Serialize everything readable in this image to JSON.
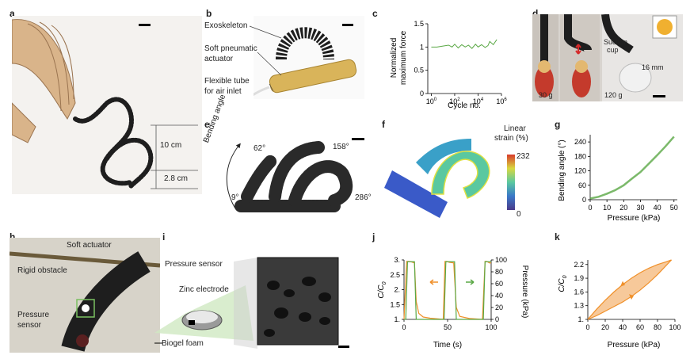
{
  "labels": {
    "a": "a",
    "b": "b",
    "c": "c",
    "d": "d",
    "e": "e",
    "f": "f",
    "g": "g",
    "h": "h",
    "i": "i",
    "j": "j",
    "k": "k"
  },
  "panel_a": {
    "dim_upper": "10 cm",
    "dim_lower": "2.8 cm"
  },
  "panel_b": {
    "exoskeleton": "Exoskeleton",
    "actuator_line1": "Soft pneumatic",
    "actuator_line2": "actuator",
    "tube_line1": "Flexible tube",
    "tube_line2": "for air inlet"
  },
  "panel_d": {
    "weight1": "30 g",
    "weight2": "120 g",
    "suction_line1": "Suction",
    "suction_line2": "cup",
    "dim": "16 mm"
  },
  "panel_e": {
    "axis": "Bending angle",
    "a1": "9°",
    "a2": "62°",
    "a3": "158°",
    "a4": "286°"
  },
  "panel_f": {
    "cbar_title_line1": "Linear",
    "cbar_title_line2": "strain (%)",
    "cbar_max": "232",
    "cbar_min": "0"
  },
  "panel_h": {
    "soft": "Soft actuator",
    "rigid": "Rigid obstacle",
    "sensor_line1": "Pressure",
    "sensor_line2": "sensor"
  },
  "panel_i": {
    "title": "Pressure sensor",
    "zinc": "Zinc electrode",
    "biogel": "Biogel foam"
  },
  "colors": {
    "green": "#5aa845",
    "orange": "#f0902a",
    "orange_fill": "#f7c99a",
    "black": "#1a1a1a"
  },
  "chart_data": [
    {
      "panel": "c",
      "type": "line",
      "xlabel": "Cycle no.",
      "ylabel_line1": "Normalized",
      "ylabel_line2": "maximum force",
      "x_log": true,
      "xlim": [
        0.5,
        1000000
      ],
      "ylim": [
        0,
        1.5
      ],
      "xticks": [
        {
          "base": "10",
          "exp": "0",
          "v": 1
        },
        {
          "base": "10",
          "exp": "2",
          "v": 100
        },
        {
          "base": "10",
          "exp": "4",
          "v": 10000
        },
        {
          "base": "10",
          "exp": "6",
          "v": 1000000
        }
      ],
      "yticks": [
        "0",
        "0.5",
        "1",
        "1.5"
      ],
      "series": [
        {
          "x": [
            1,
            3,
            10,
            30,
            60,
            100,
            200,
            400,
            800,
            1500,
            3000,
            6000,
            10000,
            20000,
            40000,
            70000,
            100000,
            200000,
            400000
          ],
          "y": [
            1.0,
            1.0,
            1.02,
            1.04,
            1.0,
            1.06,
            0.98,
            1.05,
            1.0,
            1.04,
            0.97,
            1.06,
            1.0,
            1.05,
            0.99,
            1.03,
            1.12,
            1.05,
            1.16
          ]
        }
      ]
    },
    {
      "panel": "g",
      "type": "line",
      "xlabel": "Pressure (kPa)",
      "ylabel": "Bending angle (°)",
      "xlim": [
        0,
        52
      ],
      "ylim": [
        0,
        270
      ],
      "xticks": [
        "0",
        "10",
        "20",
        "30",
        "40",
        "50"
      ],
      "yticks": [
        "0",
        "60",
        "120",
        "180",
        "240"
      ],
      "series": [
        {
          "x": [
            0,
            5,
            10,
            15,
            20,
            25,
            30,
            35,
            40,
            45,
            50
          ],
          "y": [
            5,
            12,
            25,
            40,
            60,
            88,
            115,
            150,
            185,
            222,
            262
          ]
        }
      ]
    },
    {
      "panel": "j",
      "type": "line",
      "xlabel": "Time (s)",
      "ylabel_left_base": "C/C",
      "ylabel_left_sub": "0",
      "ylabel_right": "Pressure (kPa)",
      "xlim": [
        0,
        100
      ],
      "ylim_left": [
        1,
        3
      ],
      "ylim_right": [
        0,
        100
      ],
      "xticks": [
        "0",
        "50",
        "100"
      ],
      "yticks_left": [
        "1.",
        "1.5",
        "2.",
        "2.5",
        "3."
      ],
      "yticks_right": [
        "0",
        "20",
        "40",
        "60",
        "80",
        "100"
      ],
      "series": [
        {
          "axis": "left",
          "color": "orange",
          "x": [
            0,
            3,
            5,
            8,
            12,
            14,
            17,
            22,
            30,
            45,
            47,
            49,
            52,
            57,
            60,
            64,
            75,
            90,
            93,
            95,
            98,
            100
          ],
          "y": [
            1.0,
            2.95,
            2.95,
            2.94,
            2.9,
            1.6,
            1.2,
            1.08,
            1.04,
            1.0,
            2.95,
            2.95,
            2.92,
            2.9,
            1.4,
            1.1,
            1.03,
            1.0,
            2.95,
            2.95,
            2.9,
            2.9
          ]
        },
        {
          "axis": "right",
          "color": "green",
          "x": [
            0,
            2,
            4,
            12,
            14,
            16,
            44,
            46,
            48,
            58,
            60,
            62,
            89,
            91,
            93,
            100
          ],
          "y": [
            0,
            0,
            97,
            97,
            0,
            0,
            0,
            0,
            97,
            97,
            0,
            0,
            0,
            0,
            97,
            97
          ]
        }
      ]
    },
    {
      "panel": "k",
      "type": "area",
      "xlabel": "Pressure (kPa)",
      "ylabel_base": "C/C",
      "ylabel_sub": "0",
      "xlim": [
        0,
        100
      ],
      "ylim": [
        1,
        2.3
      ],
      "xticks": [
        "0",
        "20",
        "40",
        "60",
        "80",
        "100"
      ],
      "yticks": [
        "1.",
        "1.3",
        "1.6",
        "1.9",
        "2.2"
      ],
      "series": [
        {
          "name": "loading",
          "x": [
            0,
            10,
            20,
            30,
            40,
            50,
            60,
            70,
            80,
            90,
            96
          ],
          "y": [
            1.0,
            1.22,
            1.42,
            1.6,
            1.76,
            1.9,
            2.02,
            2.12,
            2.2,
            2.26,
            2.3
          ]
        },
        {
          "name": "unloading",
          "x": [
            96,
            90,
            80,
            70,
            60,
            50,
            40,
            30,
            20,
            10,
            0
          ],
          "y": [
            2.3,
            2.18,
            1.98,
            1.8,
            1.64,
            1.5,
            1.38,
            1.28,
            1.18,
            1.08,
            1.0
          ]
        }
      ]
    }
  ]
}
